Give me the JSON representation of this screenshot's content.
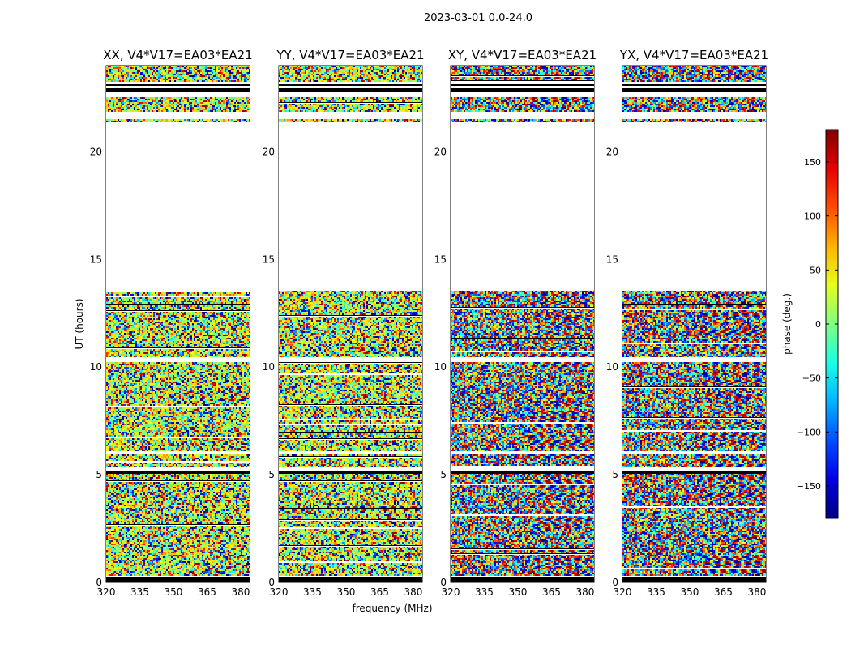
{
  "chart_data": {
    "type": "heatmap",
    "title": "2023-03-01 0.0-24.0",
    "xlabel": "frequency (MHz)",
    "ylabel": "UT (hours)",
    "xlim": [
      320,
      384
    ],
    "ylim": [
      0,
      24
    ],
    "xticks": [
      "320",
      "335",
      "350",
      "365",
      "380"
    ],
    "xtick_values": [
      320,
      335,
      350,
      365,
      380
    ],
    "yticks": [
      "0",
      "5",
      "10",
      "15",
      "20"
    ],
    "ytick_values": [
      0,
      5,
      10,
      15,
      20
    ],
    "panels": [
      {
        "title": "XX, V4*V17=EA03*EA21"
      },
      {
        "title": "YY, V4*V17=EA03*EA21"
      },
      {
        "title": "XY, V4*V17=EA03*EA21"
      },
      {
        "title": "YX, V4*V17=EA03*EA21"
      }
    ],
    "data_bands_hours": [
      {
        "start": 0.0,
        "end": 0.25,
        "kind": "flagged"
      },
      {
        "start": 0.3,
        "end": 5.05,
        "kind": "data"
      },
      {
        "start": 5.05,
        "end": 5.15,
        "kind": "flagged"
      },
      {
        "start": 5.35,
        "end": 5.95,
        "kind": "data"
      },
      {
        "start": 6.15,
        "end": 10.25,
        "kind": "data"
      },
      {
        "start": 10.5,
        "end": 13.55,
        "kind": "data"
      },
      {
        "start": 21.4,
        "end": 21.5,
        "kind": "data"
      },
      {
        "start": 21.9,
        "end": 22.55,
        "kind": "data"
      },
      {
        "start": 22.8,
        "end": 22.95,
        "kind": "flagged"
      },
      {
        "start": 23.05,
        "end": 23.15,
        "kind": "flagged"
      },
      {
        "start": 23.25,
        "end": 24.0,
        "kind": "data"
      }
    ],
    "colorbar": {
      "label": "phase (deg.)",
      "range": [
        -180,
        180
      ],
      "ticks": [
        "150",
        "100",
        "50",
        "0",
        "−50",
        "−100",
        "−150"
      ],
      "tick_values": [
        150,
        100,
        50,
        0,
        -50,
        -100,
        -150
      ],
      "colormap": "jet"
    }
  }
}
